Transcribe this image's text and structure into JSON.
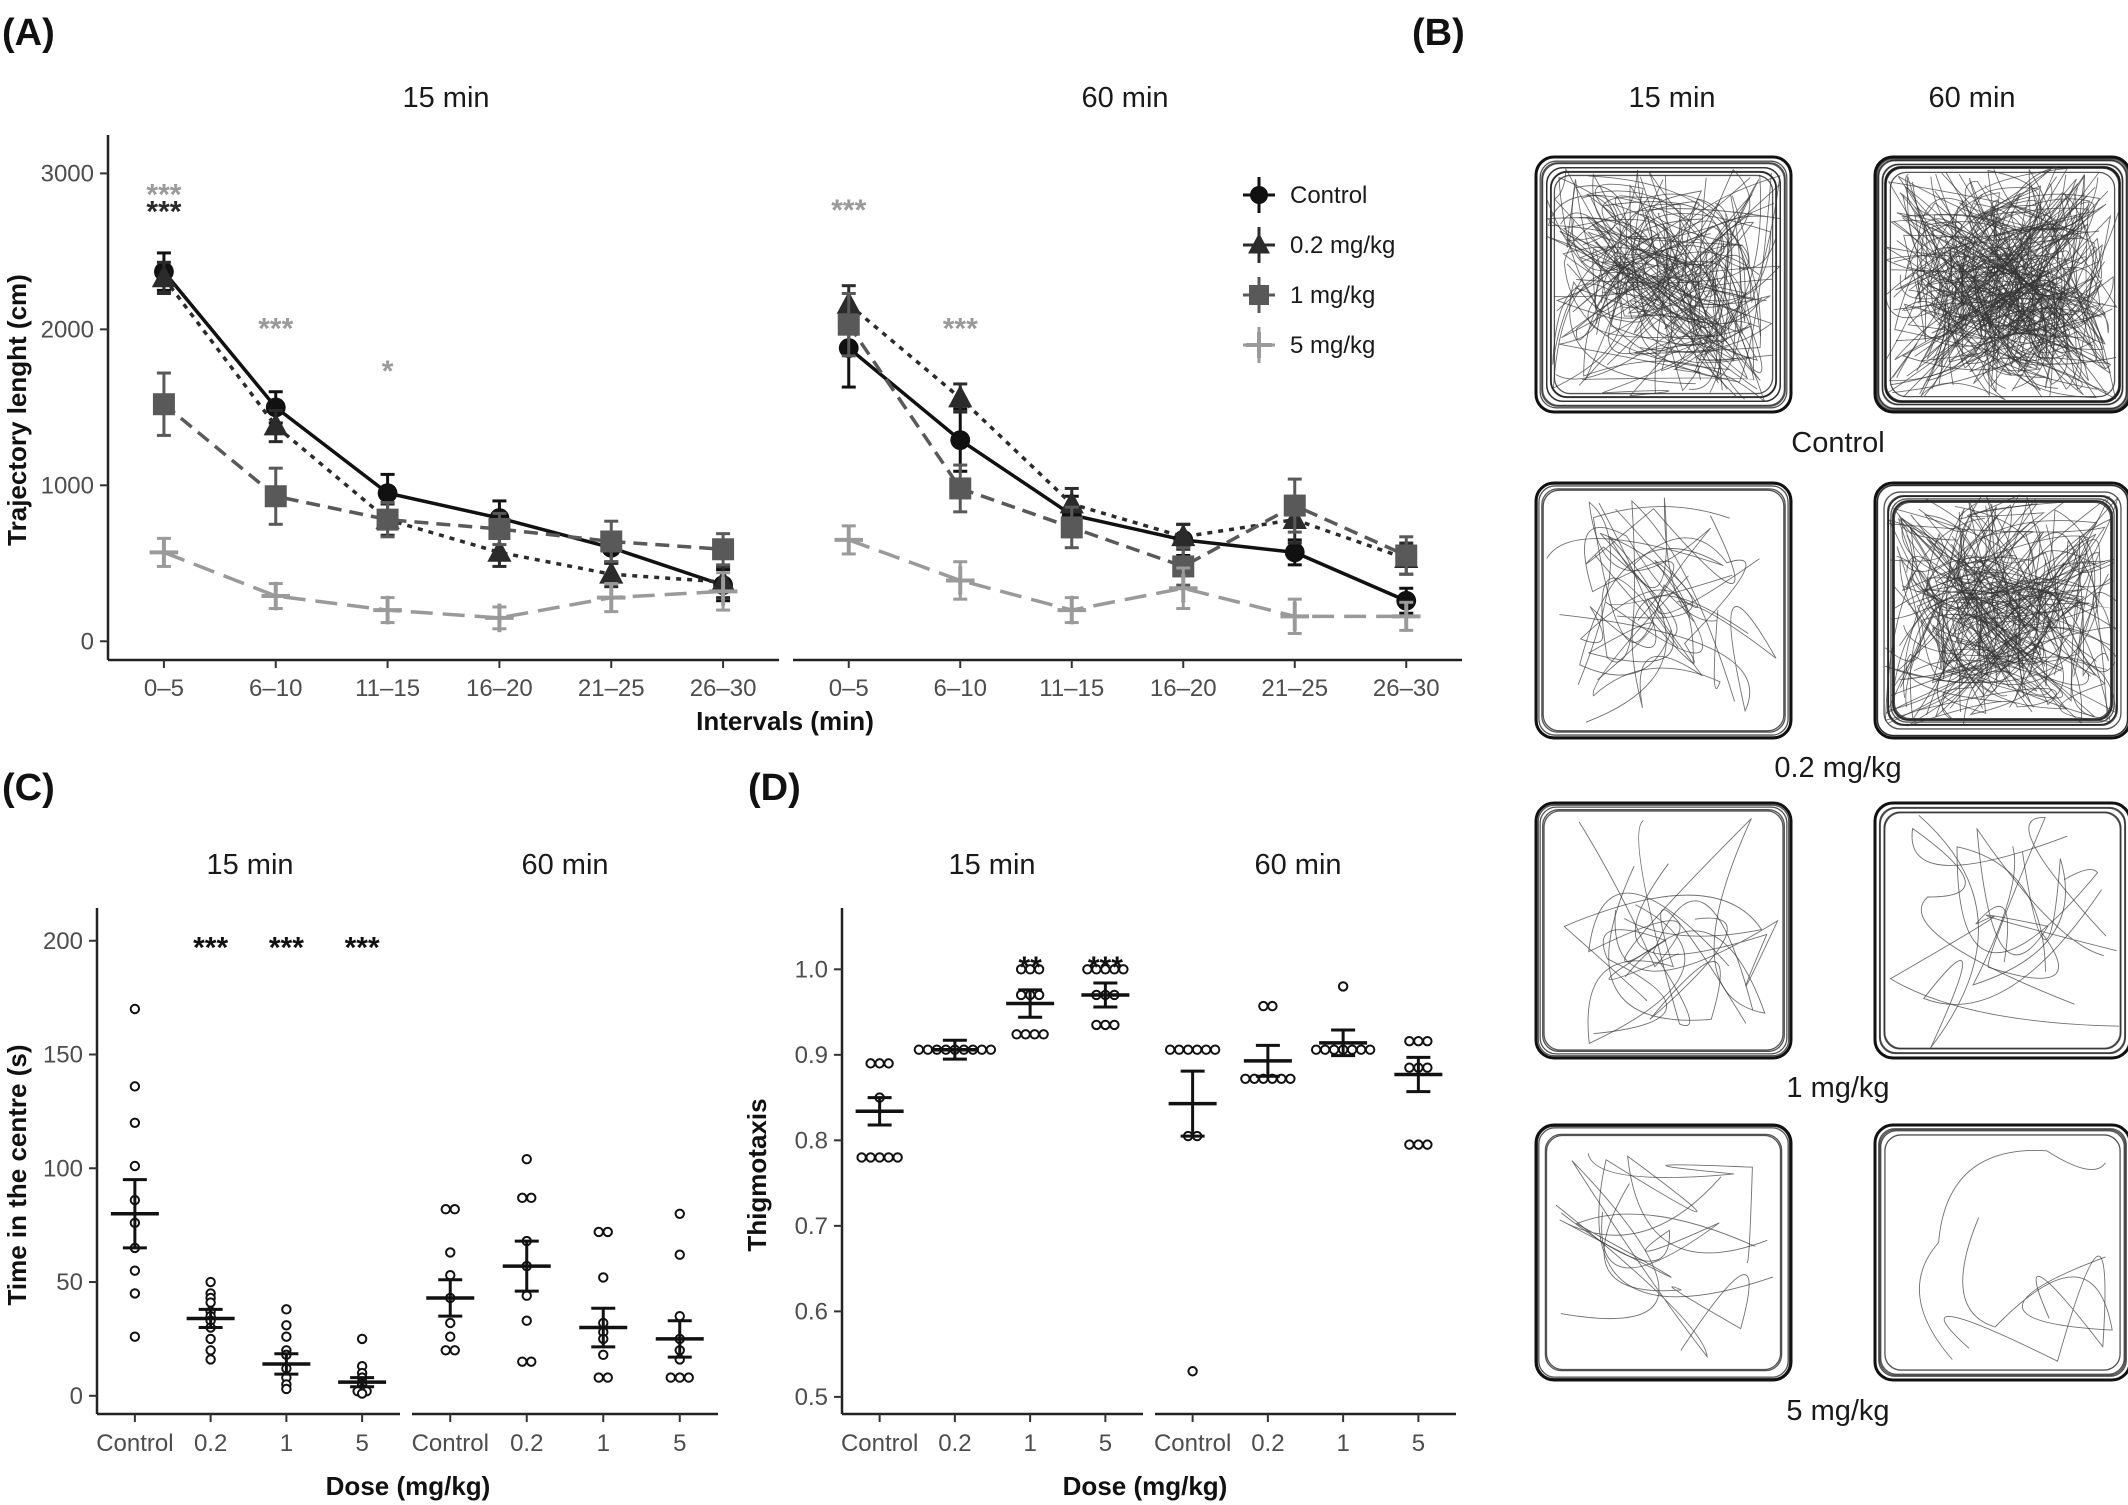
{
  "panel_labels": {
    "A": "(A)",
    "B": "(B)",
    "C": "(C)",
    "D": "(D)"
  },
  "colors": {
    "Control": "#111111",
    "0.2 mg/kg": "#2b2b2b",
    "1 mg/kg": "#595959",
    "5 mg/kg": "#9a9a9a"
  },
  "chart_data": [
    {
      "id": "A",
      "type": "line",
      "facets": [
        "15 min",
        "60 min"
      ],
      "xlabel": "Intervals (min)",
      "ylabel": "Trajectory lenght (cm)",
      "ylim": [
        -120,
        3150
      ],
      "yticks": [
        0,
        1000,
        2000,
        3000
      ],
      "categories": [
        "0–5",
        "6–10",
        "11–15",
        "16–20",
        "21–25",
        "26–30"
      ],
      "legend_position": "top-right (inside 60 min facet)",
      "series": [
        {
          "name": "Control",
          "marker": "circle",
          "dash": "solid",
          "values": [
            [
              2370,
              1500,
              950,
              790,
              600,
              360
            ],
            [
              1880,
              1290,
              810,
              650,
              570,
              260
            ]
          ],
          "errors": [
            [
              120,
              100,
              120,
              110,
              100,
              100
            ],
            [
              250,
              200,
              120,
              100,
              80,
              80
            ]
          ]
        },
        {
          "name": "0.2 mg/kg",
          "marker": "triangle",
          "dash": "dotted",
          "values": [
            [
              2330,
              1380,
              780,
              570,
              430,
              380
            ],
            [
              2160,
              1560,
              880,
              670,
              780,
              530
            ]
          ],
          "errors": [
            [
              100,
              100,
              100,
              90,
              80,
              100
            ],
            [
              120,
              90,
              100,
              80,
              150,
              100
            ]
          ]
        },
        {
          "name": "1 mg/kg",
          "marker": "square",
          "dash": "dashed",
          "values": [
            [
              1520,
              930,
              780,
              720,
              640,
              590
            ],
            [
              2030,
              980,
              730,
              480,
              870,
              550
            ]
          ],
          "errors": [
            [
              200,
              180,
              110,
              100,
              130,
              100
            ],
            [
              200,
              150,
              130,
              120,
              170,
              120
            ]
          ]
        },
        {
          "name": "5 mg/kg",
          "marker": "plus",
          "dash": "longdash",
          "values": [
            [
              570,
              290,
              200,
              150,
              280,
              320
            ],
            [
              650,
              390,
              200,
              340,
              160,
              160
            ]
          ],
          "errors": [
            [
              90,
              80,
              80,
              70,
              90,
              120
            ],
            [
              90,
              120,
              80,
              130,
              110,
              90
            ]
          ]
        }
      ],
      "annotations": [
        {
          "facet": 0,
          "category": 0,
          "text": "***",
          "color": "#9a9a9a",
          "y": 2890
        },
        {
          "facet": 0,
          "category": 0,
          "text": "***",
          "color": "#2b2b2b",
          "y": 2780
        },
        {
          "facet": 0,
          "category": 1,
          "text": "***",
          "color": "#9a9a9a",
          "y": 2030
        },
        {
          "facet": 0,
          "category": 2,
          "text": "*",
          "color": "#9a9a9a",
          "y": 1760
        },
        {
          "facet": 1,
          "category": 0,
          "text": "***",
          "color": "#9a9a9a",
          "y": 2790
        },
        {
          "facet": 1,
          "category": 1,
          "text": "***",
          "color": "#9a9a9a",
          "y": 2030
        }
      ]
    },
    {
      "id": "B",
      "type": "trajectory-images",
      "columns": [
        "15 min",
        "60 min"
      ],
      "rows": [
        "Control",
        "0.2 mg/kg",
        "1 mg/kg",
        "5 mg/kg"
      ]
    },
    {
      "id": "C",
      "type": "scatter",
      "facets": [
        "15 min",
        "60 min"
      ],
      "categories": [
        "Control",
        "0.2",
        "1",
        "5"
      ],
      "xlabel": "Dose (mg/kg)",
      "ylabel": "Time in the centre (s)",
      "ylim": [
        -8,
        210
      ],
      "yticks": [
        0,
        50,
        100,
        150,
        200
      ],
      "groups": [
        [
          {
            "mean": 80,
            "sem": 15,
            "points": [
              170,
              136,
              120,
              101,
              86,
              76,
              65,
              55,
              45,
              26
            ]
          },
          {
            "mean": 34,
            "sem": 4,
            "points": [
              50,
              45,
              43,
              41,
              37,
              35,
              33,
              30,
              25,
              20,
              16
            ]
          },
          {
            "mean": 14,
            "sem": 4.5,
            "points": [
              38,
              31,
              26,
              20,
              18,
              12,
              8,
              5,
              3
            ]
          },
          {
            "mean": 6,
            "sem": 2,
            "points": [
              25,
              13,
              10,
              8,
              6,
              5,
              3,
              2,
              2,
              1
            ]
          }
        ],
        [
          {
            "mean": 43,
            "sem": 8,
            "points": [
              82,
              82,
              63,
              53,
              43,
              32,
              26,
              20,
              20
            ]
          },
          {
            "mean": 57,
            "sem": 11,
            "points": [
              104,
              87,
              87,
              68,
              57,
              44,
              33,
              15,
              15
            ]
          },
          {
            "mean": 30,
            "sem": 8.5,
            "points": [
              72,
              72,
              52,
              32,
              28,
              25,
              18,
              8,
              8
            ]
          },
          {
            "mean": 25,
            "sem": 8,
            "points": [
              80,
              62,
              35,
              25,
              20,
              16,
              8,
              8,
              8
            ]
          }
        ]
      ],
      "annotations": [
        {
          "facet": 0,
          "category": 1,
          "text": "***",
          "y": 198
        },
        {
          "facet": 0,
          "category": 2,
          "text": "***",
          "y": 198
        },
        {
          "facet": 0,
          "category": 3,
          "text": "***",
          "y": 198
        }
      ]
    },
    {
      "id": "D",
      "type": "scatter",
      "facets": [
        "15 min",
        "60 min"
      ],
      "categories": [
        "Control",
        "0.2",
        "1",
        "5"
      ],
      "xlabel": "Dose (mg/kg)",
      "ylabel": "Thigmotaxis",
      "ylim": [
        0.48,
        1.06
      ],
      "yticks": [
        0.5,
        0.6,
        0.7,
        0.8,
        0.9,
        1.0
      ],
      "ytick_labels": [
        "0.5",
        "0.6",
        "0.7",
        "0.8",
        "0.9",
        "1.0"
      ],
      "groups": [
        [
          {
            "mean": 0.834,
            "sem": 0.016,
            "points": [
              0.89,
              0.89,
              0.89,
              0.85,
              0.78,
              0.78,
              0.78,
              0.78,
              0.78
            ]
          },
          {
            "mean": 0.906,
            "sem": 0.011,
            "points": [
              0.906,
              0.906,
              0.906,
              0.906,
              0.906,
              0.906,
              0.906,
              0.906,
              0.906
            ]
          },
          {
            "mean": 0.96,
            "sem": 0.016,
            "points": [
              1.0,
              1.0,
              1.0,
              0.97,
              0.97,
              0.97,
              0.924,
              0.924,
              0.924,
              0.924
            ]
          },
          {
            "mean": 0.97,
            "sem": 0.014,
            "points": [
              1.0,
              1.0,
              1.0,
              1.0,
              1.0,
              0.97,
              0.97,
              0.97,
              0.935,
              0.935,
              0.935
            ]
          }
        ],
        [
          {
            "mean": 0.843,
            "sem": 0.038,
            "points": [
              0.906,
              0.906,
              0.906,
              0.906,
              0.906,
              0.906,
              0.805,
              0.805,
              0.53
            ]
          },
          {
            "mean": 0.893,
            "sem": 0.018,
            "points": [
              0.957,
              0.957,
              0.872,
              0.872,
              0.872,
              0.872,
              0.872,
              0.872
            ]
          },
          {
            "mean": 0.914,
            "sem": 0.015,
            "points": [
              0.98,
              0.906,
              0.906,
              0.906,
              0.906,
              0.906,
              0.906,
              0.906
            ]
          },
          {
            "mean": 0.877,
            "sem": 0.02,
            "points": [
              0.916,
              0.916,
              0.916,
              0.885,
              0.885,
              0.885,
              0.795,
              0.795,
              0.795
            ]
          }
        ]
      ],
      "annotations": [
        {
          "facet": 0,
          "category": 2,
          "text": "**",
          "y": 1.005
        },
        {
          "facet": 0,
          "category": 3,
          "text": "***",
          "y": 1.005
        }
      ]
    }
  ]
}
